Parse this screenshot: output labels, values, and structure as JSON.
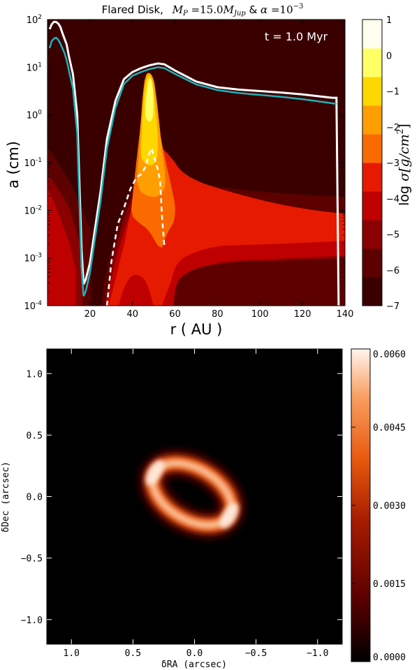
{
  "chart_data": [
    {
      "type": "heatmap",
      "title": "Flared Disk,  M_P = 15.0 M_Jup & α = 10^-3",
      "title_parts": {
        "prefix": "Flared Disk,",
        "mp": "M",
        "mp_sub": "P",
        "mp_val": " =15.0",
        "mjup": "M",
        "mjup_sub": "Jup",
        "and": " & ",
        "alpha": "α",
        "alpha_eq": " =10",
        "alpha_exp": "−3"
      },
      "annotation": "t = 1.0 Myr",
      "xlabel": "r ( AU )",
      "ylabel": "a (cm)",
      "xlim": [
        0,
        140
      ],
      "ylim_log10": [
        -4,
        2
      ],
      "xticks": [
        20,
        40,
        60,
        80,
        100,
        120,
        140
      ],
      "yticks": [
        {
          "value": -4,
          "base": "10",
          "exp": "-4"
        },
        {
          "value": -3,
          "base": "10",
          "exp": "-3"
        },
        {
          "value": -2,
          "base": "10",
          "exp": "-2"
        },
        {
          "value": -1,
          "base": "10",
          "exp": "-1"
        },
        {
          "value": 0,
          "base": "10",
          "exp": "0"
        },
        {
          "value": 1,
          "base": "10",
          "exp": "1"
        },
        {
          "value": 2,
          "base": "10",
          "exp": "2"
        }
      ],
      "colorbar": {
        "label": "log σ[g/cm²]",
        "label_parts": {
          "log": "log ",
          "sigma": "σ",
          "unit": "[g/cm",
          "exp": "2",
          "close": "]"
        },
        "min": -7,
        "max": 1,
        "ticks": [
          "−7",
          "−6",
          "−5",
          "−4",
          "−3",
          "−2",
          "−1",
          "0",
          "1"
        ],
        "colors": [
          "#3a0000",
          "#5c0000",
          "#8b0000",
          "#bf0000",
          "#e61a00",
          "#fb6a00",
          "#ff9e00",
          "#ffd700",
          "#ffff66",
          "#fffff0"
        ]
      },
      "series": [
        {
          "style": "white-solid",
          "x": [
            1,
            2,
            3,
            4,
            5,
            6,
            7,
            8,
            9,
            10,
            12,
            14,
            16,
            17,
            18,
            20,
            22,
            25,
            28,
            32,
            36,
            40,
            44,
            48,
            52,
            55,
            60,
            70,
            80,
            90,
            100,
            110,
            120,
            130,
            134,
            136,
            137
          ],
          "y_log10": [
            1.8,
            1.9,
            1.95,
            1.95,
            1.92,
            1.85,
            1.72,
            1.6,
            1.48,
            1.25,
            0.85,
            0.0,
            -2.8,
            -3.55,
            -3.45,
            -3.1,
            -2.5,
            -1.6,
            -0.5,
            0.3,
            0.75,
            0.9,
            0.98,
            1.04,
            1.08,
            1.06,
            0.93,
            0.7,
            0.58,
            0.53,
            0.5,
            0.47,
            0.43,
            0.38,
            0.36,
            0.36,
            -4
          ]
        },
        {
          "style": "teal-solid",
          "x": [
            1,
            2,
            3,
            4,
            5,
            6,
            7,
            8,
            9,
            10,
            12,
            14,
            16,
            17,
            18,
            20,
            22,
            25,
            28,
            32,
            36,
            40,
            44,
            48,
            52,
            55,
            60,
            70,
            80,
            90,
            100,
            110,
            120,
            130,
            136
          ],
          "y_log10": [
            1.4,
            1.55,
            1.6,
            1.62,
            1.58,
            1.5,
            1.4,
            1.3,
            1.15,
            0.95,
            0.55,
            -0.4,
            -3.2,
            -3.8,
            -3.7,
            -3.3,
            -2.7,
            -1.8,
            -0.7,
            0.15,
            0.65,
            0.82,
            0.9,
            0.96,
            1.0,
            0.98,
            0.86,
            0.64,
            0.52,
            0.46,
            0.42,
            0.38,
            0.33,
            0.27,
            0.23
          ]
        },
        {
          "style": "white-dashed",
          "x": [
            28,
            30,
            33,
            36,
            39,
            42,
            44,
            46,
            48,
            49,
            50,
            51,
            52,
            53,
            54,
            55
          ],
          "y_log10": [
            -4,
            -3.1,
            -2.3,
            -1.95,
            -1.55,
            -1.3,
            -1.25,
            -1.1,
            -0.8,
            -0.7,
            -0.85,
            -1.0,
            -1.15,
            -1.4,
            -2.2,
            -2.75
          ]
        }
      ]
    },
    {
      "type": "heatmap",
      "xlabel": "δRA (arcsec)",
      "ylabel": "δDec (arcsec)",
      "xlim": [
        1.2,
        -1.2
      ],
      "ylim": [
        -1.2,
        1.2
      ],
      "xticks": [
        "1.0",
        "0.5",
        "0.0",
        "−0.5",
        "−1.0"
      ],
      "xtick_values": [
        1.0,
        0.5,
        0.0,
        -0.5,
        -1.0
      ],
      "yticks": [
        "1.0",
        "0.5",
        "0.0",
        "−0.5",
        "−1.0"
      ],
      "ytick_values": [
        1.0,
        0.5,
        0.0,
        -0.5,
        -1.0
      ],
      "ring": {
        "center_ra": 0.02,
        "center_dec": 0.02,
        "semi_major_arcsec": 0.35,
        "semi_minor_arcsec": 0.21,
        "position_angle_deg": 30,
        "peak": 0.006
      },
      "colorbar": {
        "min": 0.0,
        "max": 0.006,
        "ticks": [
          "0.0000",
          "0.0015",
          "0.0030",
          "0.0045",
          "0.0060"
        ],
        "tick_values": [
          0.0,
          0.0015,
          0.003,
          0.0045,
          0.006
        ],
        "colors": [
          "#000000",
          "#5a0000",
          "#a61c00",
          "#e85a10",
          "#f9a062",
          "#fff5ee"
        ]
      }
    }
  ]
}
